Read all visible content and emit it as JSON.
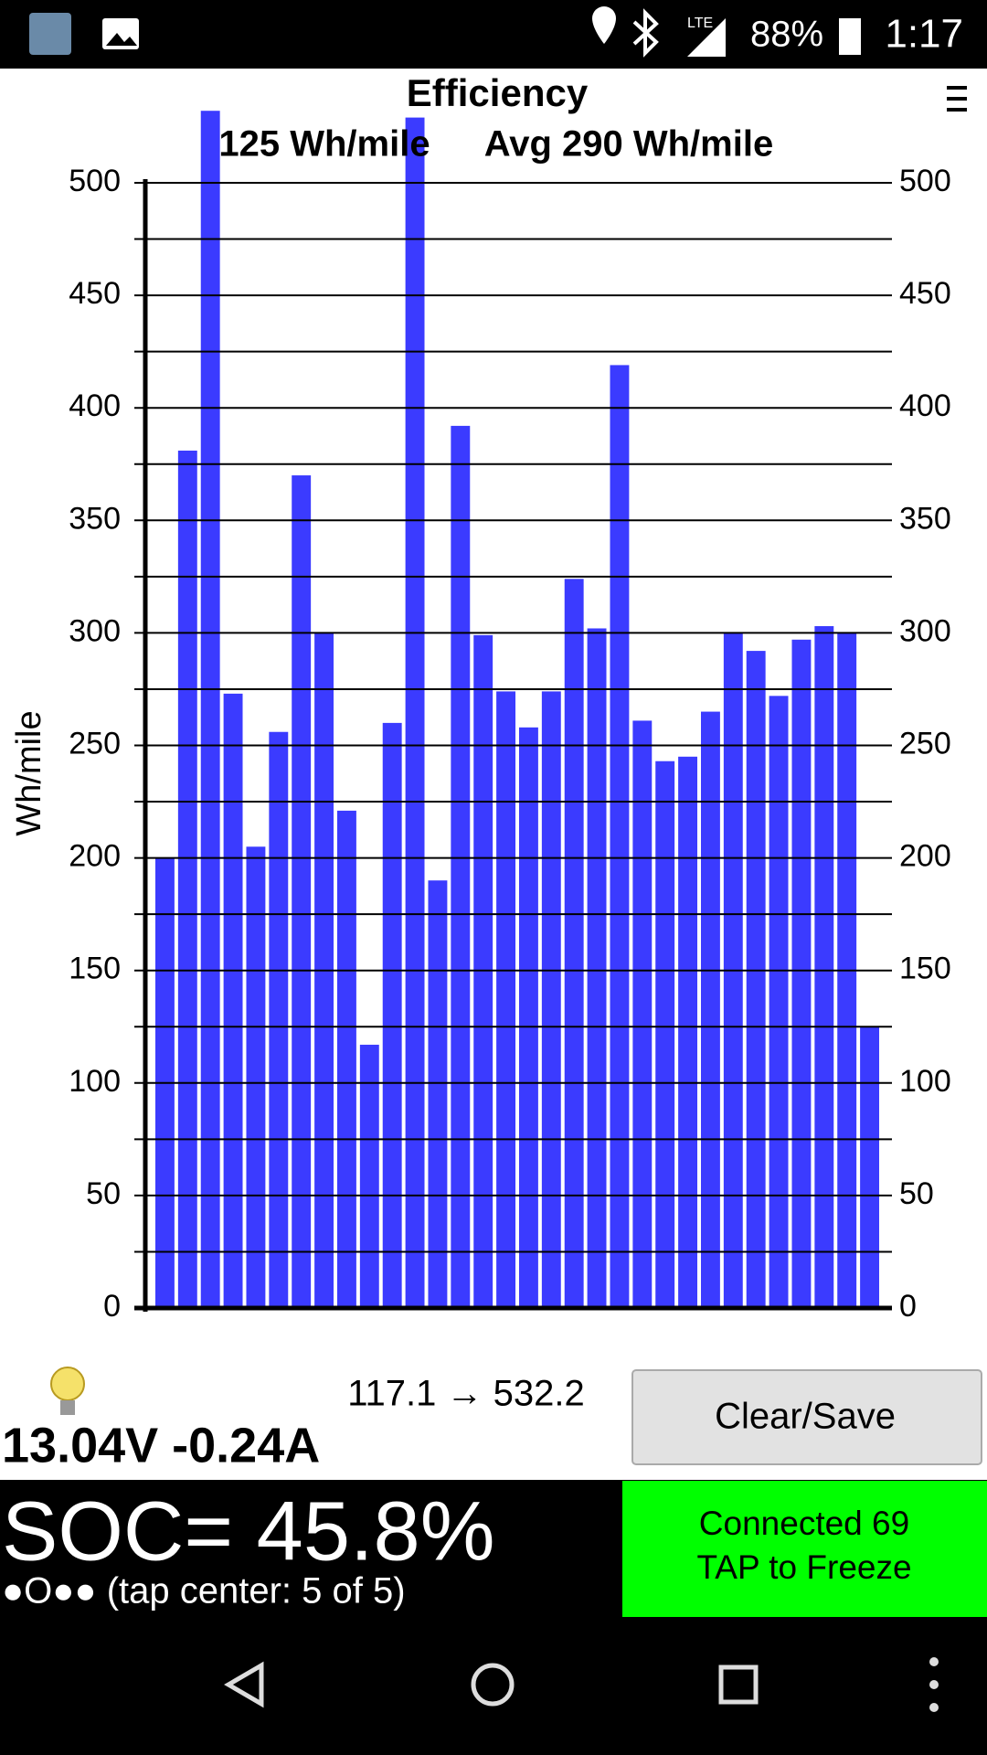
{
  "status_bar": {
    "battery": "88%",
    "time": "1:17"
  },
  "chart_data": {
    "type": "bar",
    "title": "Efficiency",
    "current_label": "125 Wh/mile",
    "average_label": "Avg 290 Wh/mile",
    "y_label": "Wh/mile",
    "categories": [
      null,
      null,
      null,
      null,
      null,
      null,
      null,
      null,
      null,
      null,
      null,
      null,
      null,
      null,
      null,
      null,
      null,
      null,
      null,
      null,
      null,
      null,
      null,
      null,
      null,
      null,
      null,
      null,
      null,
      null,
      null,
      null
    ],
    "values": [
      200,
      381,
      532,
      273,
      205,
      256,
      370,
      300,
      221,
      117,
      260,
      529,
      190,
      392,
      299,
      274,
      258,
      274,
      324,
      302,
      419,
      261,
      243,
      245,
      265,
      300,
      292,
      272,
      297,
      303,
      300,
      125
    ],
    "color": "#3b3bff",
    "ylim": [
      0,
      500
    ],
    "yticks": [
      0,
      50,
      100,
      150,
      200,
      250,
      300,
      350,
      400,
      450,
      500
    ],
    "minor_yticks": [
      25,
      75,
      125,
      175,
      225,
      275,
      325,
      375,
      425,
      475
    ],
    "grid": true,
    "right_axis": true
  },
  "readout": {
    "range": "117.1 → 532.2",
    "voltage_current": "13.04V -0.24A"
  },
  "button": {
    "label": "Clear/Save"
  },
  "soc": {
    "text": "SOC= 45.8%",
    "status": "●O●● (tap center: 5 of 5)"
  },
  "connection": {
    "line1": "Connected 69",
    "line2": "TAP to Freeze"
  }
}
